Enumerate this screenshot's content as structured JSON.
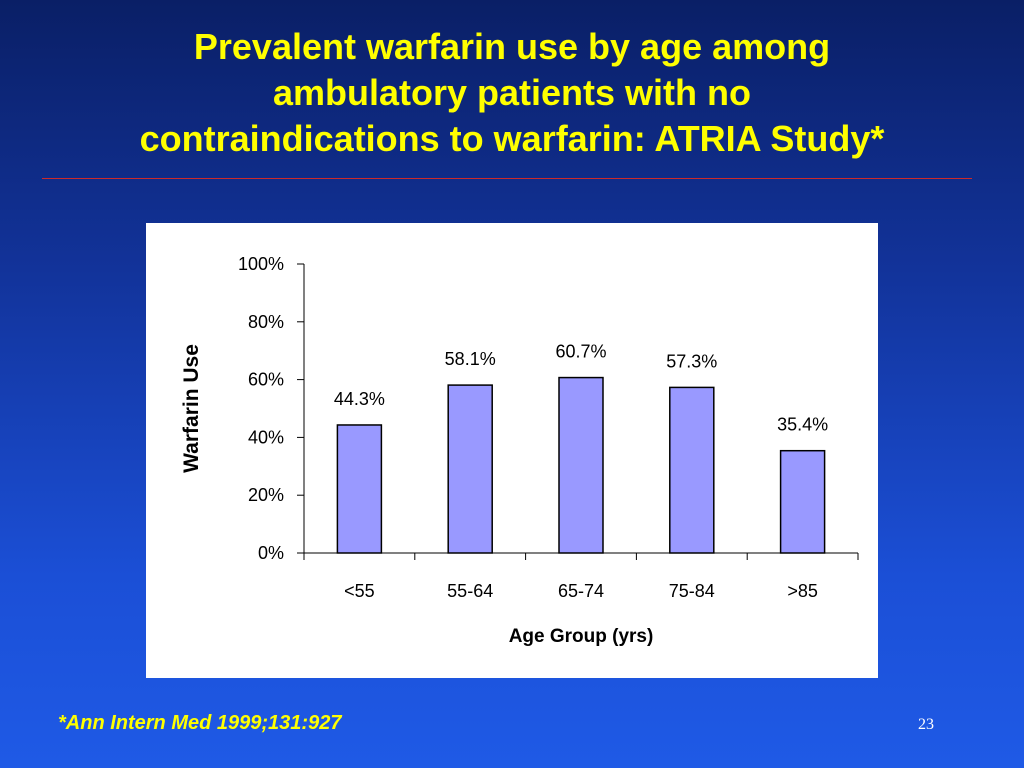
{
  "slide": {
    "title_lines": [
      "Prevalent warfarin use by age among",
      "ambulatory patients with no",
      "contraindications to warfarin: ATRIA Study*"
    ],
    "footnote": "*Ann Intern Med 1999;131:927",
    "page_number": "23"
  },
  "colors": {
    "title": "#ffff00",
    "bar_fill": "#9999ff",
    "bar_stroke": "#000000",
    "rule": "#cc2a2a"
  },
  "chart_data": {
    "type": "bar",
    "categories": [
      "<55",
      "55-64",
      "65-74",
      "75-84",
      ">85"
    ],
    "values": [
      44.3,
      58.1,
      60.7,
      57.3,
      35.4
    ],
    "data_labels": [
      "44.3%",
      "58.1%",
      "60.7%",
      "57.3%",
      "35.4%"
    ],
    "title": "",
    "xlabel": "Age Group (yrs)",
    "ylabel": "Warfarin Use",
    "ylim": [
      0,
      100
    ],
    "yticks": [
      0,
      20,
      40,
      60,
      80,
      100
    ],
    "ytick_labels": [
      "0%",
      "20%",
      "40%",
      "60%",
      "80%",
      "100%"
    ],
    "grid": false,
    "legend": "none"
  }
}
